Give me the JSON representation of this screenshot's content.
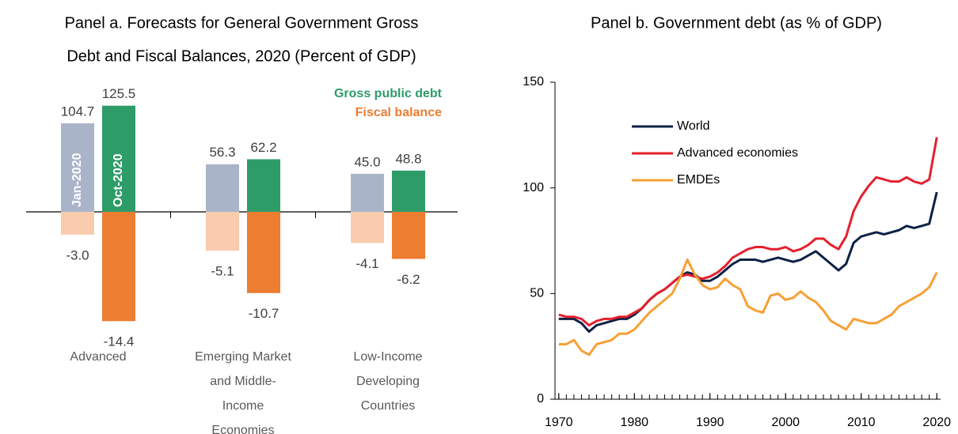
{
  "chart_data": [
    {
      "type": "grouped-bar",
      "title": [
        "Panel a. Forecasts for General Government Gross",
        "Debt and Fiscal Balances, 2020 (Percent of GDP)"
      ],
      "categories": [
        [
          "Advanced"
        ],
        [
          "Emerging Market",
          "and Middle-",
          "Income",
          "Economies"
        ],
        [
          "Low-Income",
          "Developing",
          "Countries"
        ]
      ],
      "measures": [
        {
          "name": "Gross public debt",
          "color": "#2e9c69",
          "series": [
            {
              "name": "Jan-2020",
              "color": "#aab4c8",
              "values": [
                104.7,
                56.3,
                45.0
              ],
              "value_labels": [
                "104.7",
                "56.3",
                "45.0"
              ]
            },
            {
              "name": "Oct-2020",
              "color": "#2e9c69",
              "values": [
                125.5,
                62.2,
                48.8
              ],
              "value_labels": [
                "125.5",
                "62.2",
                "48.8"
              ]
            }
          ]
        },
        {
          "name": "Fiscal balance",
          "color": "#ed7d31",
          "series": [
            {
              "color": "#f8cbad",
              "values": [
                -3.0,
                -5.1,
                -4.1
              ],
              "value_labels": [
                "-3.0",
                "-5.1",
                "-4.1"
              ]
            },
            {
              "color": "#ed7d31",
              "values": [
                -14.4,
                -10.7,
                -6.2
              ],
              "value_labels": [
                "-14.4",
                "-10.7",
                "-6.2"
              ]
            }
          ]
        }
      ]
    },
    {
      "type": "line",
      "title": "Panel b. Government debt (as % of GDP)",
      "x": [
        1970,
        1971,
        1972,
        1973,
        1974,
        1975,
        1976,
        1977,
        1978,
        1979,
        1980,
        1981,
        1982,
        1983,
        1984,
        1985,
        1986,
        1987,
        1988,
        1989,
        1990,
        1991,
        1992,
        1993,
        1994,
        1995,
        1996,
        1997,
        1998,
        1999,
        2000,
        2001,
        2002,
        2003,
        2004,
        2005,
        2006,
        2007,
        2008,
        2009,
        2010,
        2011,
        2012,
        2013,
        2014,
        2015,
        2016,
        2017,
        2018,
        2019,
        2020
      ],
      "series": [
        {
          "name": "World",
          "color": "#0d2146",
          "values": [
            38,
            38,
            38,
            36,
            32,
            35,
            36,
            37,
            38,
            38,
            40,
            43,
            47,
            50,
            52,
            55,
            58,
            60,
            59,
            56,
            56,
            58,
            61,
            64,
            66,
            66,
            66,
            65,
            66,
            67,
            66,
            65,
            66,
            68,
            70,
            67,
            64,
            61,
            64,
            74,
            77,
            78,
            79,
            78,
            79,
            80,
            82,
            81,
            82,
            83,
            98
          ]
        },
        {
          "name": "Advanced economies",
          "color": "#e5202e",
          "values": [
            40,
            39,
            39,
            38,
            35,
            37,
            38,
            38,
            39,
            39,
            41,
            43,
            47,
            50,
            52,
            55,
            58,
            59,
            58,
            57,
            58,
            60,
            63,
            67,
            69,
            71,
            72,
            72,
            71,
            71,
            72,
            70,
            71,
            73,
            76,
            76,
            73,
            71,
            77,
            89,
            96,
            101,
            105,
            104,
            103,
            103,
            105,
            103,
            102,
            104,
            124
          ]
        },
        {
          "name": "EMDEs",
          "color": "#f7a035",
          "values": [
            26,
            26,
            28,
            23,
            21,
            26,
            27,
            28,
            31,
            31,
            33,
            37,
            41,
            44,
            47,
            50,
            57,
            66,
            59,
            54,
            52,
            53,
            57,
            54,
            52,
            44,
            42,
            41,
            49,
            50,
            47,
            48,
            51,
            48,
            46,
            42,
            37,
            35,
            33,
            38,
            37,
            36,
            36,
            38,
            40,
            44,
            46,
            48,
            50,
            53,
            60
          ]
        }
      ],
      "xlim": [
        1969.5,
        2020.5
      ],
      "xticks": [
        1970,
        1980,
        1990,
        2000,
        2010,
        2020
      ],
      "ylim": [
        0,
        150
      ],
      "yticks": [
        0,
        50,
        100,
        150
      ]
    }
  ]
}
